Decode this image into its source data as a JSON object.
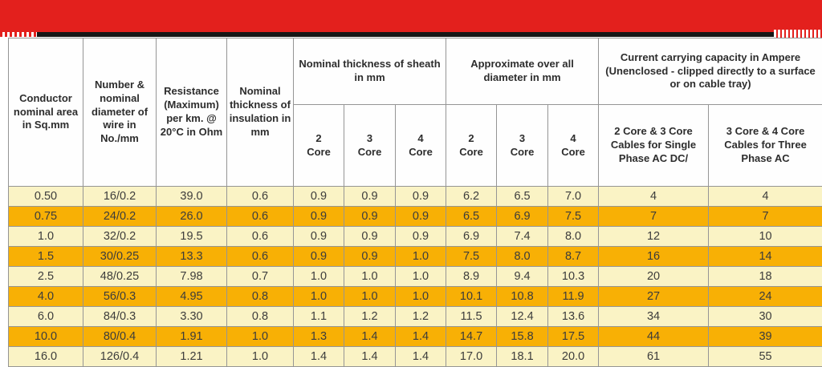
{
  "banner": {
    "color": "#e3201d"
  },
  "colors": {
    "row_light": "#faf3c5",
    "row_dark": "#f8b005",
    "border": "#959595",
    "header_text": "#2d2d2d",
    "data_text": "#3c3c3c"
  },
  "table": {
    "columns": [
      {
        "label": "Conductor nominal area in Sq.mm"
      },
      {
        "label": "Number & nominal diameter of wire in No./mm"
      },
      {
        "label": "Resistance (Maximum) per km. @ 20°C in Ohm"
      },
      {
        "label": "Nominal thickness of insulation in mm"
      }
    ],
    "groups": [
      {
        "label": "Nominal thickness of sheath in mm"
      },
      {
        "label": "Approximate over all diameter in mm"
      },
      {
        "label": "Current carrying capacity in Ampere (Unenclosed - clipped directly to a surface or on cable tray)"
      }
    ],
    "subheaders": [
      "2\nCore",
      "3\nCore",
      "4\nCore",
      "2\nCore",
      "3\nCore",
      "4\nCore",
      "2 Core & 3 Core Cables for Single Phase AC DC/",
      "3 Core & 4 Core Cables for Three Phase AC"
    ],
    "rows": [
      [
        "0.50",
        "16/0.2",
        "39.0",
        "0.6",
        "0.9",
        "0.9",
        "0.9",
        "6.2",
        "6.5",
        "7.0",
        "4",
        "4"
      ],
      [
        "0.75",
        "24/0.2",
        "26.0",
        "0.6",
        "0.9",
        "0.9",
        "0.9",
        "6.5",
        "6.9",
        "7.5",
        "7",
        "7"
      ],
      [
        "1.0",
        "32/0.2",
        "19.5",
        "0.6",
        "0.9",
        "0.9",
        "0.9",
        "6.9",
        "7.4",
        "8.0",
        "12",
        "10"
      ],
      [
        "1.5",
        "30/0.25",
        "13.3",
        "0.6",
        "0.9",
        "0.9",
        "1.0",
        "7.5",
        "8.0",
        "8.7",
        "16",
        "14"
      ],
      [
        "2.5",
        "48/0.25",
        "7.98",
        "0.7",
        "1.0",
        "1.0",
        "1.0",
        "8.9",
        "9.4",
        "10.3",
        "20",
        "18"
      ],
      [
        "4.0",
        "56/0.3",
        "4.95",
        "0.8",
        "1.0",
        "1.0",
        "1.0",
        "10.1",
        "10.8",
        "11.9",
        "27",
        "24"
      ],
      [
        "6.0",
        "84/0.3",
        "3.30",
        "0.8",
        "1.1",
        "1.2",
        "1.2",
        "11.5",
        "12.4",
        "13.6",
        "34",
        "30"
      ],
      [
        "10.0",
        "80/0.4",
        "1.91",
        "1.0",
        "1.3",
        "1.4",
        "1.4",
        "14.7",
        "15.8",
        "17.5",
        "44",
        "39"
      ],
      [
        "16.0",
        "126/0.4",
        "1.21",
        "1.0",
        "1.4",
        "1.4",
        "1.4",
        "17.0",
        "18.1",
        "20.0",
        "61",
        "55"
      ]
    ]
  }
}
